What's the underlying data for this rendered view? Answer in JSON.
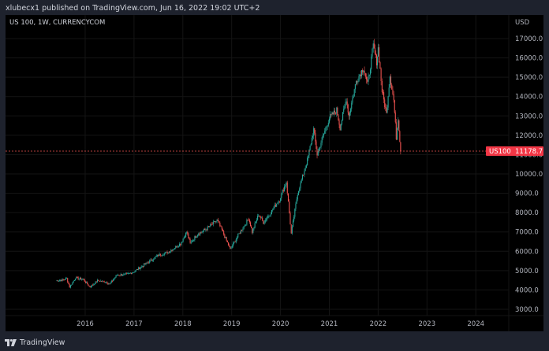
{
  "header": {
    "published_line": "xlubecx1 published on TradingView.com, Jun 16, 2022 19:02 UTC+2"
  },
  "chart": {
    "symbol_title": "US 100, 1W, CURRENCYCOM",
    "currency": "USD",
    "last_price": {
      "symbol": "US100",
      "value": "11178.7",
      "tag_color": "#f23645"
    },
    "colors": {
      "up": "#26a69a",
      "down": "#ef5350",
      "background": "#000000",
      "grid": "#141414",
      "axis_text": "#b2b5be",
      "price_line": "#ef5350"
    }
  },
  "footer": {
    "brand": "TradingView"
  },
  "chart_data": {
    "type": "candlestick",
    "title": "US 100, 1W, CURRENCYCOM",
    "xlabel": "",
    "ylabel": "USD",
    "y_ticks": [
      "17000.0",
      "16000.0",
      "15000.0",
      "14000.0",
      "13000.0",
      "12000.0",
      "11000.0",
      "10000.0",
      "9000.0",
      "8000.0",
      "7000.0",
      "6000.0",
      "5000.0",
      "4000.0",
      "3000.0"
    ],
    "x_ticks": [
      "2016",
      "2017",
      "2018",
      "2019",
      "2020",
      "2021",
      "2022",
      "2023",
      "2024"
    ],
    "ylim": [
      2800,
      17600
    ],
    "grid": true,
    "last_value": 11178.7,
    "price_anchors": [
      {
        "t": 2015.4,
        "p": 4480
      },
      {
        "t": 2015.55,
        "p": 4520
      },
      {
        "t": 2015.62,
        "p": 4600
      },
      {
        "t": 2015.68,
        "p": 4150
      },
      {
        "t": 2015.8,
        "p": 4620
      },
      {
        "t": 2015.95,
        "p": 4560
      },
      {
        "t": 2016.1,
        "p": 4150
      },
      {
        "t": 2016.25,
        "p": 4480
      },
      {
        "t": 2016.45,
        "p": 4400
      },
      {
        "t": 2016.5,
        "p": 4300
      },
      {
        "t": 2016.65,
        "p": 4780
      },
      {
        "t": 2016.85,
        "p": 4800
      },
      {
        "t": 2017.0,
        "p": 4950
      },
      {
        "t": 2017.3,
        "p": 5450
      },
      {
        "t": 2017.5,
        "p": 5800
      },
      {
        "t": 2017.7,
        "p": 5950
      },
      {
        "t": 2017.95,
        "p": 6400
      },
      {
        "t": 2018.08,
        "p": 7000
      },
      {
        "t": 2018.15,
        "p": 6400
      },
      {
        "t": 2018.3,
        "p": 6900
      },
      {
        "t": 2018.45,
        "p": 7100
      },
      {
        "t": 2018.7,
        "p": 7600
      },
      {
        "t": 2018.8,
        "p": 7100
      },
      {
        "t": 2018.97,
        "p": 6100
      },
      {
        "t": 2019.15,
        "p": 6900
      },
      {
        "t": 2019.35,
        "p": 7700
      },
      {
        "t": 2019.42,
        "p": 7000
      },
      {
        "t": 2019.55,
        "p": 7900
      },
      {
        "t": 2019.65,
        "p": 7500
      },
      {
        "t": 2019.8,
        "p": 8000
      },
      {
        "t": 2019.98,
        "p": 8700
      },
      {
        "t": 2020.12,
        "p": 9600
      },
      {
        "t": 2020.22,
        "p": 6900
      },
      {
        "t": 2020.35,
        "p": 9000
      },
      {
        "t": 2020.55,
        "p": 10700
      },
      {
        "t": 2020.68,
        "p": 12300
      },
      {
        "t": 2020.75,
        "p": 11000
      },
      {
        "t": 2020.85,
        "p": 11800
      },
      {
        "t": 2021.0,
        "p": 12900
      },
      {
        "t": 2021.15,
        "p": 13300
      },
      {
        "t": 2021.22,
        "p": 12400
      },
      {
        "t": 2021.35,
        "p": 13900
      },
      {
        "t": 2021.4,
        "p": 13000
      },
      {
        "t": 2021.55,
        "p": 14800
      },
      {
        "t": 2021.7,
        "p": 15500
      },
      {
        "t": 2021.78,
        "p": 14600
      },
      {
        "t": 2021.9,
        "p": 16600
      },
      {
        "t": 2021.97,
        "p": 15800
      },
      {
        "t": 2022.0,
        "p": 16500
      },
      {
        "t": 2022.08,
        "p": 14300
      },
      {
        "t": 2022.17,
        "p": 13100
      },
      {
        "t": 2022.24,
        "p": 15100
      },
      {
        "t": 2022.32,
        "p": 13800
      },
      {
        "t": 2022.37,
        "p": 11900
      },
      {
        "t": 2022.41,
        "p": 12900
      },
      {
        "t": 2022.46,
        "p": 11178.7
      }
    ]
  }
}
